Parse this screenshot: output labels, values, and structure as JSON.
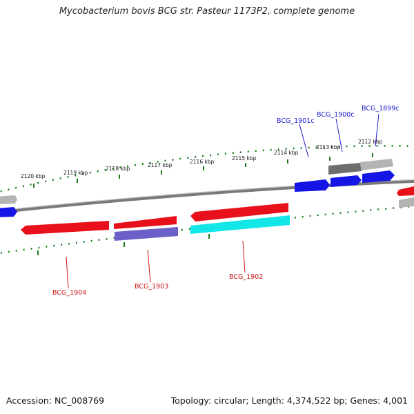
{
  "title": "Mycobacterium bovis BCG str. Pasteur 1173P2, complete genome",
  "footer": {
    "accession": "Accession: NC_008769",
    "topology": "Topology: circular; Length: 4,374,522 bp; Genes: 4,001"
  },
  "scale_labels": [
    "2120 kbp",
    "2119 kbp",
    "2118 kbp",
    "2117 kbp",
    "2116 kbp",
    "2115 kbp",
    "2114 kbp",
    "2113 kbp",
    "2112 kbp"
  ],
  "gene_labels": {
    "forward": [
      "BCG_1901c",
      "BCG_1900c",
      "BCG_1899c"
    ],
    "reverse": [
      "BCG_1904",
      "BCG_1903",
      "BCG_1902"
    ]
  },
  "colors": {
    "forward_label": "#1a1acc",
    "reverse_label": "#cc1111",
    "red_gene": "#e8101a",
    "blue_gene": "#1515e6",
    "cyan_gene": "#12e6e6",
    "purple_gene": "#6b5fc8",
    "grey_gene": "#b4b4b4",
    "darkgrey_gene": "#6e6e6e",
    "tick": "#1a7a1a",
    "backbone": "#8a8a8a"
  }
}
